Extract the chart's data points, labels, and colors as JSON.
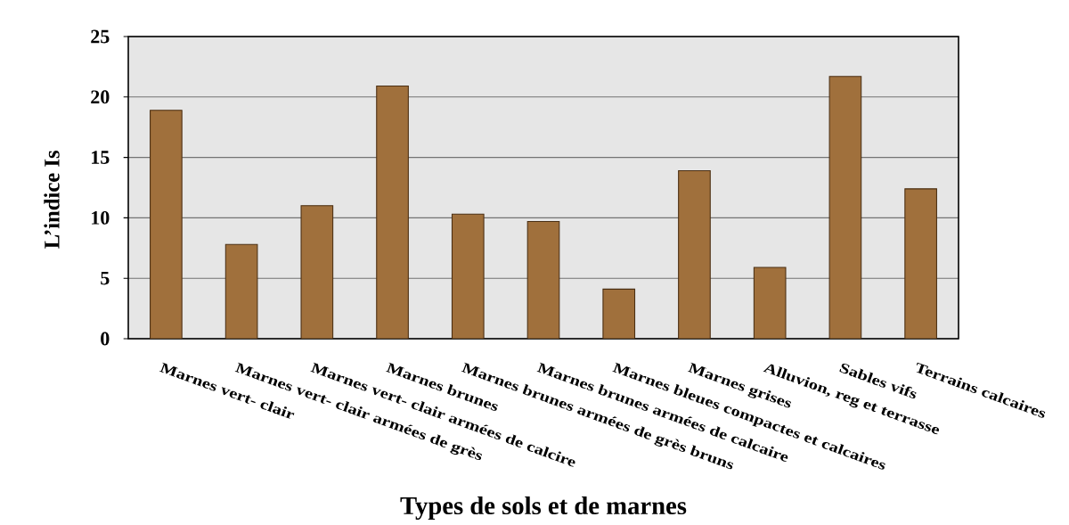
{
  "chart_data": {
    "type": "bar",
    "xlabel": "Types de sols et de marnes",
    "ylabel": "L’indice Is",
    "categories": [
      "Marnes vert- clair",
      "Marnes vert- clair armées de grès",
      "Marnes vert- clair armées de calcire",
      "Marnes brunes",
      "Marnes brunes armées de grès bruns",
      "Marnes brunes armées de calcaire",
      "Marnes bleues compactes et calcaires",
      "Marnes grises",
      "Alluvion, reg et terrasse",
      "Sables vifs",
      "Terrains calcaires"
    ],
    "values": [
      18.9,
      7.8,
      11.0,
      20.9,
      10.3,
      9.7,
      4.1,
      13.9,
      5.9,
      21.7,
      12.4
    ],
    "color": "#a0703c",
    "ylim": [
      0,
      25
    ],
    "yticks": [
      0,
      5,
      10,
      15,
      20,
      25
    ],
    "grid": "y"
  }
}
